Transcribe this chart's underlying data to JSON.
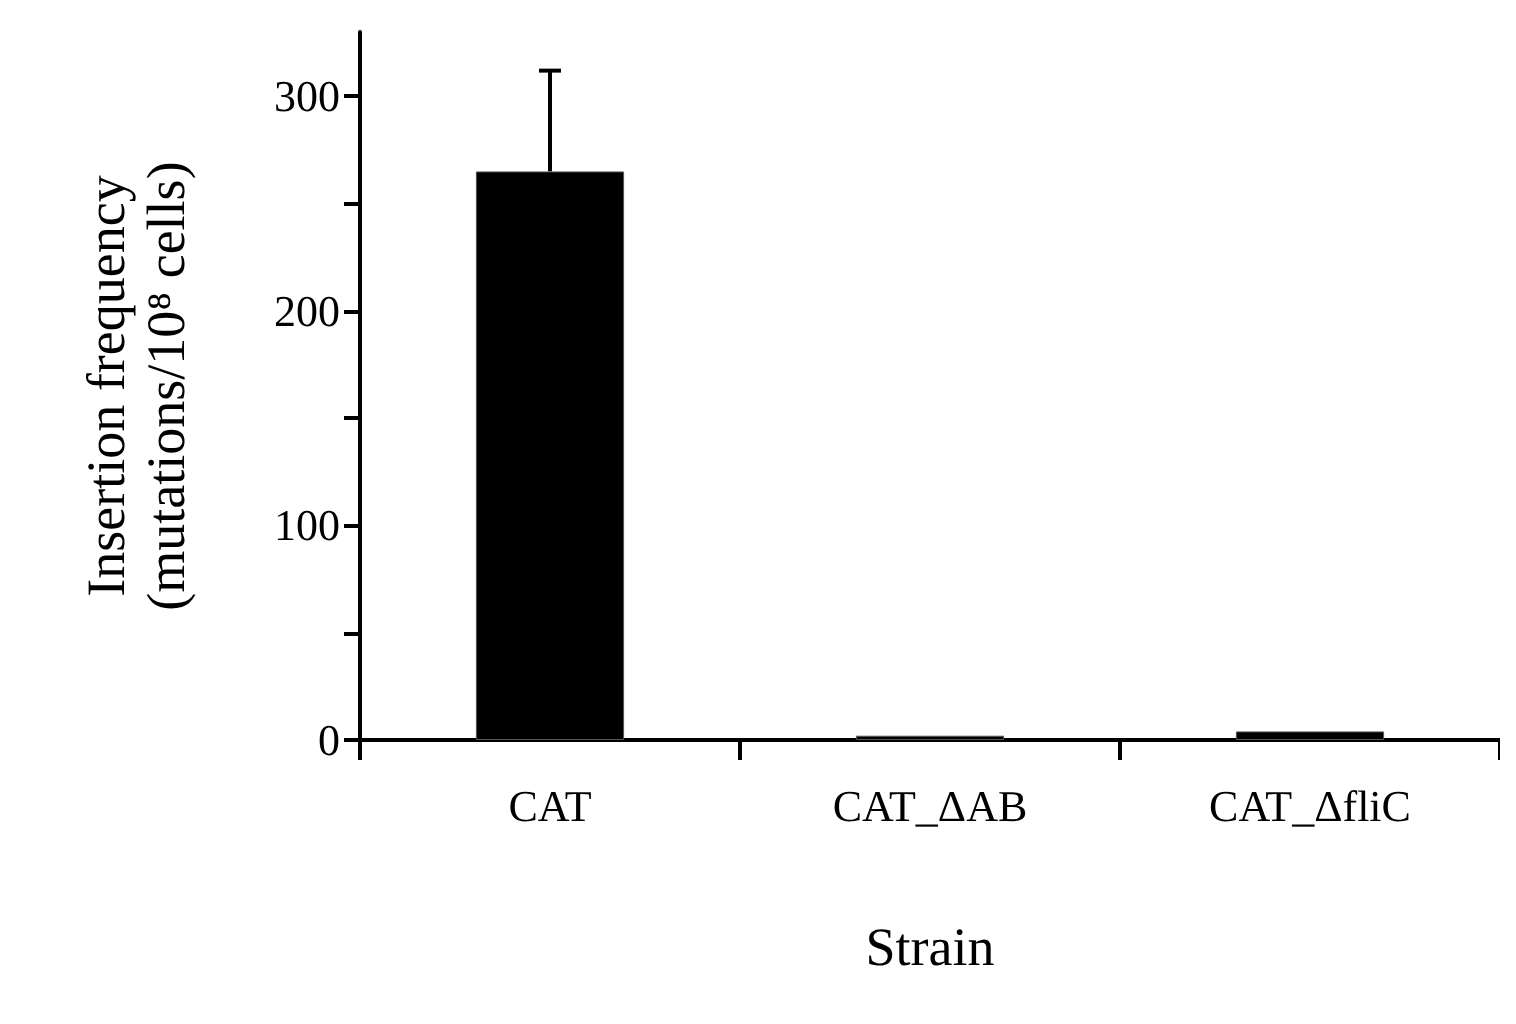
{
  "chart_data": {
    "type": "bar",
    "xlabel": "Strain",
    "ylabel": "Insertion frequency\n(mutations/10⁸ cells)",
    "categories": [
      "CAT",
      "CAT_ΔAB",
      "CAT_ΔfliC"
    ],
    "values": [
      265,
      2,
      4
    ],
    "errors": [
      47,
      null,
      null
    ],
    "color": "#000000",
    "ylim": [
      0,
      330
    ],
    "yticks": [
      0,
      {
        "value": 50,
        "label": null
      },
      100,
      {
        "value": 150,
        "label": null
      },
      200,
      {
        "value": 250,
        "label": null
      },
      300
    ],
    "grid": false
  }
}
